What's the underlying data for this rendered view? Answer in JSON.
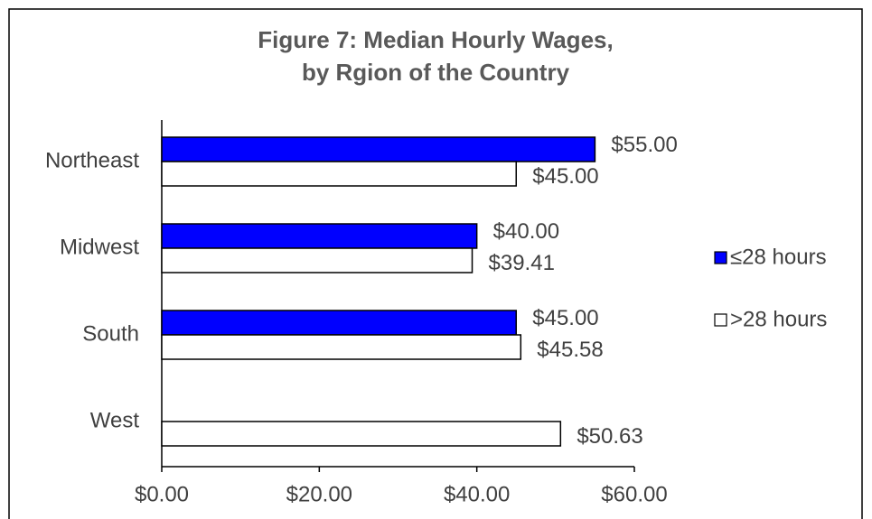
{
  "chart_data": {
    "type": "bar",
    "orientation": "horizontal",
    "title": [
      "Figure 7: Median Hourly Wages,",
      "by Rgion of the Country"
    ],
    "categories": [
      "Northeast",
      "Midwest",
      "South",
      "West"
    ],
    "series": [
      {
        "name": "≤28 hours",
        "color": "#0000ff",
        "values": [
          55,
          40,
          45,
          null
        ],
        "value_labels": [
          "$55.00",
          "$40.00",
          "$45.00",
          null
        ]
      },
      {
        "name": ">28 hours",
        "color": "#ffffff",
        "values": [
          45,
          39.41,
          45.58,
          50.63
        ],
        "value_labels": [
          "$45.00",
          "$39.41",
          "$45.58",
          "$50.63"
        ]
      }
    ],
    "xlim": [
      0,
      60
    ],
    "xticks": [
      {
        "value": 0,
        "label": "$0.00"
      },
      {
        "value": 20,
        "label": "$20.00"
      },
      {
        "value": 40,
        "label": "$40.00"
      },
      {
        "value": 60,
        "label": "$60.00"
      }
    ],
    "legend": "right"
  }
}
